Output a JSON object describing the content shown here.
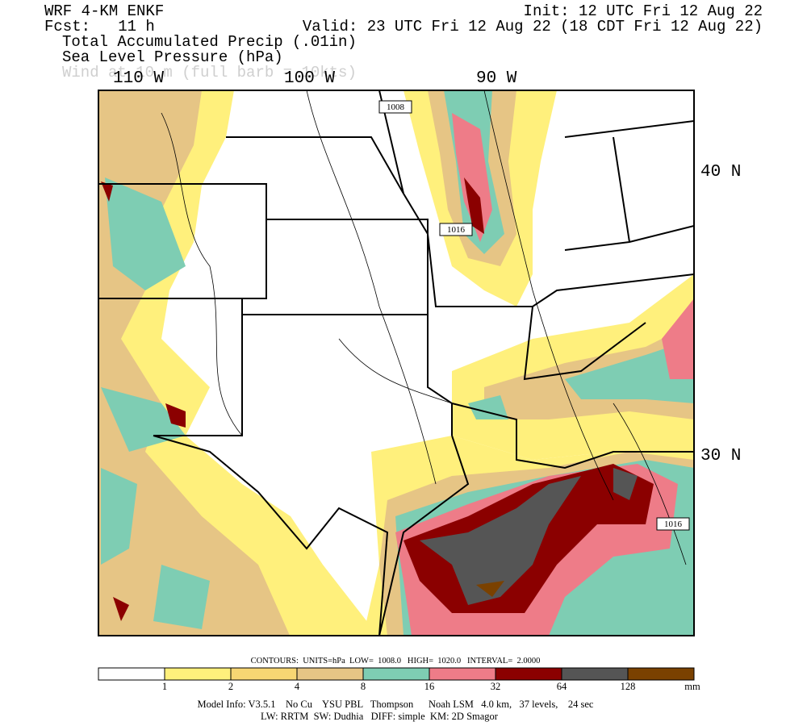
{
  "header": {
    "model": "WRF 4-KM ENKF",
    "forecast": "Fcst:   11 h",
    "fields": [
      "Total Accumulated Precip (.01in)",
      "Sea Level Pressure (hPa)",
      "Wind at 10 m (full barb = 10kts)"
    ],
    "init": "Init: 12 UTC Fri 12 Aug 22",
    "valid": "Valid: 23 UTC Fri 12 Aug 22 (18 CDT Fri 12 Aug 22)"
  },
  "map": {
    "longitudes": [
      "110 W",
      "100 W",
      "90 W"
    ],
    "latitudes": [
      "40 N",
      "30 N"
    ],
    "contour_labels": [
      "1008",
      "1016",
      "1016"
    ]
  },
  "contours": "CONTOURS:  UNITS=hPa  LOW=  1008.0   HIGH=  1020.0   INTERVAL=  2.0000",
  "legend": {
    "colors": [
      "#ffffff",
      "#fff07c",
      "#f7d673",
      "#e6c585",
      "#7ecdb3",
      "#ee7c88",
      "#8b0000",
      "#555555",
      "#7a4100"
    ],
    "ticks": [
      1,
      2,
      4,
      8,
      16,
      32,
      64,
      128
    ],
    "unit": "mm"
  },
  "footer": [
    "Model Info: V3.5.1    No Cu    YSU PBL   Thompson      Noah LSM   4.0 km,   37 levels,    24 sec",
    "LW: RRTM  SW: Dudhia   DIFF: simple  KM: 2D Smagor"
  ]
}
